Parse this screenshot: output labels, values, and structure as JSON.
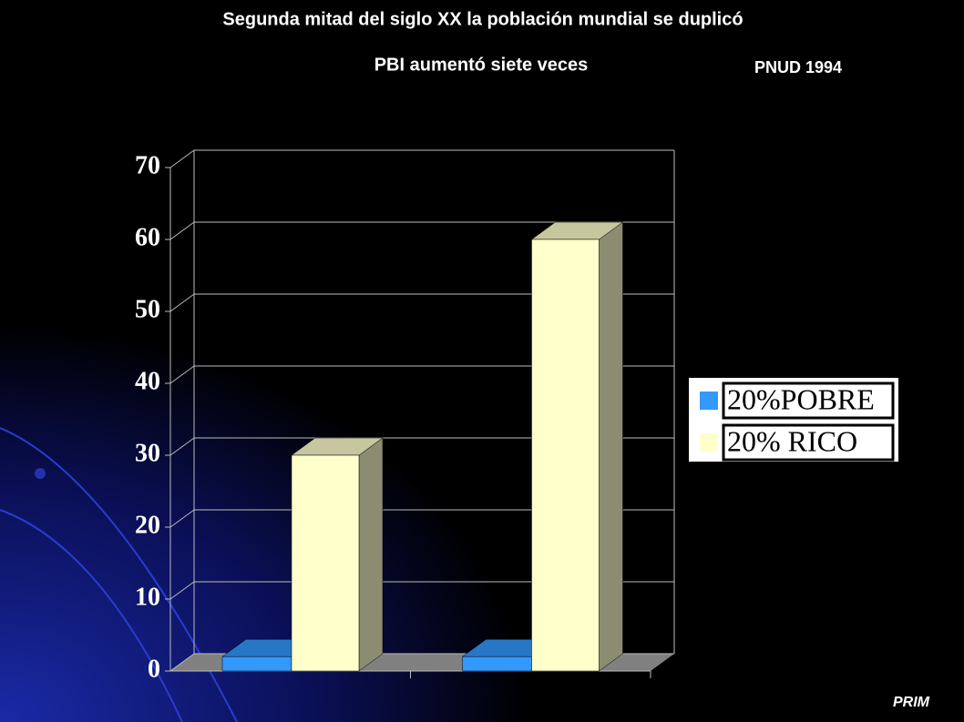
{
  "chart_data": {
    "type": "bar3d",
    "title": "Segunda mitad del siglo XX la población mundial se duplicó",
    "subtitle": "PBI aumentó siete veces",
    "annotation": "PNUD  1994",
    "logo": "PRIM",
    "categories": [
      null,
      null
    ],
    "series": [
      {
        "name": "20%POBRE",
        "color": "#3399ff",
        "values": [
          2,
          2
        ]
      },
      {
        "name": "20% RICO",
        "color": "#ffffcc",
        "values": [
          30,
          60
        ]
      }
    ],
    "ylim": [
      0,
      70
    ],
    "yticks": [
      0,
      10,
      20,
      30,
      40,
      50,
      60,
      70
    ],
    "grid": true,
    "legend": "right"
  }
}
